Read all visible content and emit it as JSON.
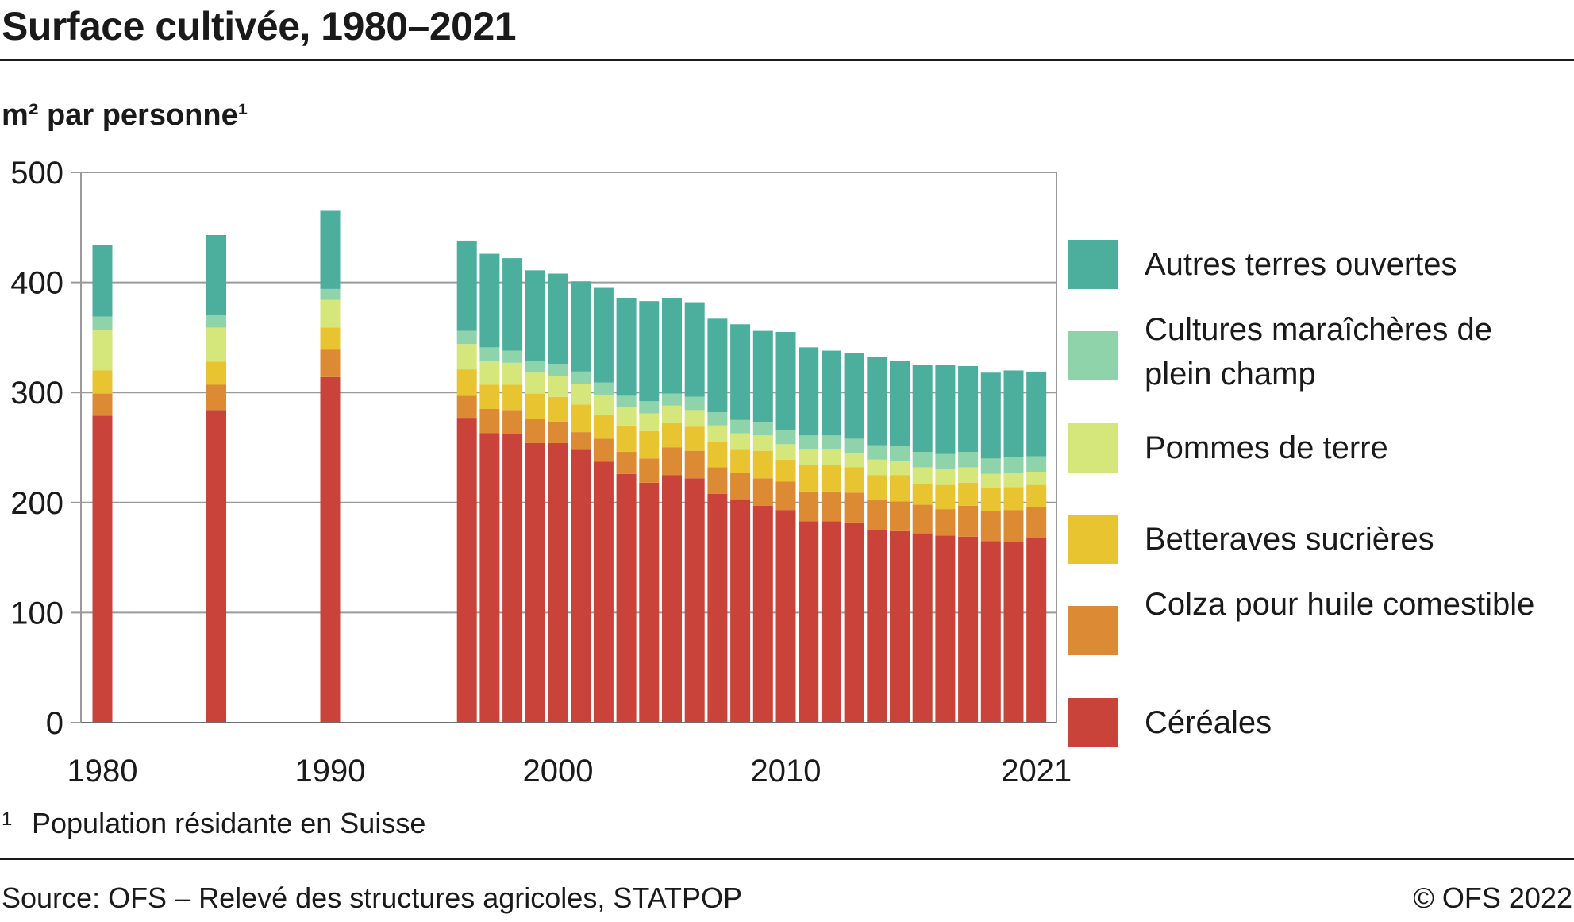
{
  "title": "Surface cultivée, 1980–2021",
  "unit_label": "m² par personne¹",
  "footnote": {
    "mark": "1",
    "text": "Population résidante en Suisse"
  },
  "source": "Source: OFS – Relevé des structures agricoles, STATPOP",
  "copyright": "© OFS 2022",
  "colors": {
    "cereales": "#c9433a",
    "colza": "#dc8a33",
    "betteraves": "#e9c431",
    "pommes": "#d5e67a",
    "maraicheres": "#8fd3ab",
    "autres": "#4caf9e",
    "grid": "#9a9a9a"
  },
  "legend": [
    {
      "key": "autres",
      "label": "Autres terres ouvertes"
    },
    {
      "key": "maraicheres",
      "label": "Cultures maraîchères de plein champ"
    },
    {
      "key": "pommes",
      "label": "Pommes de terre"
    },
    {
      "key": "betteraves",
      "label": "Betteraves sucrières"
    },
    {
      "key": "colza",
      "label": "Colza pour huile comestible"
    },
    {
      "key": "cereales",
      "label": "Céréales"
    }
  ],
  "chart_data": {
    "type": "bar",
    "stacked": true,
    "ylim": [
      0,
      500
    ],
    "yticks": [
      0,
      100,
      200,
      300,
      400,
      500
    ],
    "xticks": [
      1980,
      1990,
      2000,
      2010,
      2021
    ],
    "xlim": [
      1980,
      2021
    ],
    "grid": true,
    "legend_position": "right",
    "x": [
      1980,
      1985,
      1990,
      1996,
      1997,
      1998,
      1999,
      2000,
      2001,
      2002,
      2003,
      2004,
      2005,
      2006,
      2007,
      2008,
      2009,
      2010,
      2011,
      2012,
      2013,
      2014,
      2015,
      2016,
      2017,
      2018,
      2019,
      2020,
      2021
    ],
    "series": [
      {
        "key": "cereales",
        "name": "Céréales",
        "values": [
          279,
          284,
          314,
          277,
          263,
          262,
          254,
          254,
          248,
          237,
          226,
          218,
          225,
          222,
          208,
          203,
          197,
          193,
          183,
          183,
          182,
          175,
          174,
          172,
          170,
          169,
          165,
          164,
          168
        ]
      },
      {
        "key": "colza",
        "name": "Colza pour huile comestible",
        "values": [
          20,
          23,
          25,
          20,
          22,
          22,
          22,
          19,
          16,
          21,
          20,
          22,
          25,
          25,
          24,
          24,
          25,
          26,
          27,
          27,
          27,
          27,
          27,
          26,
          24,
          28,
          27,
          29,
          28
        ]
      },
      {
        "key": "betteraves",
        "name": "Betteraves sucrières",
        "values": [
          21,
          21,
          20,
          24,
          22,
          23,
          23,
          23,
          25,
          22,
          24,
          25,
          22,
          22,
          23,
          21,
          25,
          20,
          24,
          24,
          23,
          23,
          24,
          19,
          22,
          21,
          21,
          21,
          20
        ]
      },
      {
        "key": "pommes",
        "name": "Pommes de terre",
        "values": [
          37,
          31,
          25,
          23,
          22,
          20,
          19,
          19,
          19,
          18,
          17,
          16,
          16,
          15,
          15,
          15,
          14,
          14,
          14,
          14,
          13,
          14,
          13,
          15,
          14,
          14,
          13,
          13,
          12
        ]
      },
      {
        "key": "maraicheres",
        "name": "Cultures maraîchères de plein champ",
        "values": [
          12,
          11,
          10,
          12,
          12,
          11,
          11,
          11,
          11,
          11,
          10,
          11,
          11,
          12,
          12,
          12,
          12,
          13,
          13,
          13,
          13,
          13,
          13,
          14,
          14,
          14,
          14,
          14,
          14
        ]
      },
      {
        "key": "autres",
        "name": "Autres terres ouvertes",
        "values": [
          65,
          73,
          71,
          82,
          85,
          84,
          82,
          82,
          82,
          86,
          89,
          91,
          87,
          86,
          85,
          87,
          83,
          89,
          80,
          77,
          78,
          80,
          78,
          79,
          81,
          78,
          78,
          79,
          77
        ]
      }
    ]
  }
}
